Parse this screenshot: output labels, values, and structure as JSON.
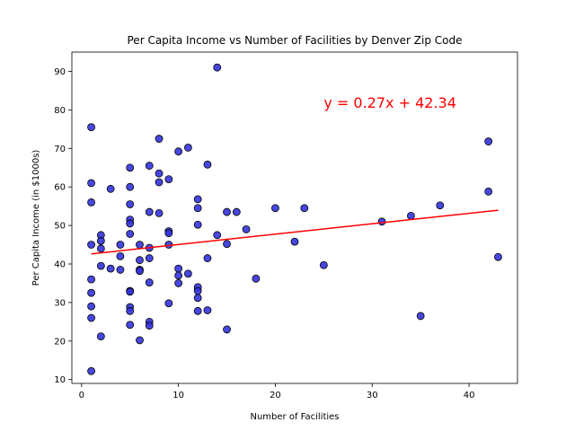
{
  "chart_data": {
    "type": "scatter",
    "title": "Per Capita Income vs Number of Facilities by Denver Zip Code",
    "xlabel": "Number of Facilities",
    "ylabel": "Per Capita Income (in $1000s)",
    "xlim": [
      -1,
      45
    ],
    "ylim": [
      9,
      95
    ],
    "xticks": [
      0,
      10,
      20,
      30,
      40
    ],
    "yticks": [
      10,
      20,
      30,
      40,
      50,
      60,
      70,
      80,
      90
    ],
    "grid": false,
    "equation": "y = 0.27x + 42.34",
    "equation_position": [
      25,
      80.5
    ],
    "regression": {
      "slope": 0.27,
      "intercept": 42.34,
      "x_range": [
        1,
        43
      ]
    },
    "colors": {
      "point_fill": "#3333dd",
      "point_edge": "#000000",
      "line": "#ff0000",
      "equation": "#ff0000"
    },
    "points": [
      [
        1,
        75.5
      ],
      [
        1,
        61
      ],
      [
        1,
        56
      ],
      [
        1,
        45
      ],
      [
        1,
        36
      ],
      [
        1,
        32.5
      ],
      [
        1,
        29
      ],
      [
        1,
        26
      ],
      [
        1,
        12.2
      ],
      [
        2,
        47.5
      ],
      [
        2,
        46
      ],
      [
        2,
        44
      ],
      [
        2,
        39.5
      ],
      [
        2,
        21.2
      ],
      [
        3,
        59.5
      ],
      [
        3,
        38.8
      ],
      [
        4,
        45
      ],
      [
        4,
        42
      ],
      [
        4,
        38.5
      ],
      [
        5,
        65
      ],
      [
        5,
        60
      ],
      [
        5,
        55.5
      ],
      [
        5,
        51.5
      ],
      [
        5,
        50.5
      ],
      [
        5,
        47.8
      ],
      [
        5,
        33
      ],
      [
        5,
        32.8
      ],
      [
        5,
        28.8
      ],
      [
        5,
        27.8
      ],
      [
        5,
        24.2
      ],
      [
        6,
        45
      ],
      [
        6,
        41
      ],
      [
        6,
        38.5
      ],
      [
        6,
        38.2
      ],
      [
        6,
        20.2
      ],
      [
        7,
        65.5
      ],
      [
        7,
        53.5
      ],
      [
        7,
        44.2
      ],
      [
        7,
        41.5
      ],
      [
        7,
        35.2
      ],
      [
        7,
        25
      ],
      [
        7,
        24
      ],
      [
        8,
        72.5
      ],
      [
        8,
        63.5
      ],
      [
        8,
        61.2
      ],
      [
        8,
        53.2
      ],
      [
        9,
        62
      ],
      [
        9,
        48.5
      ],
      [
        9,
        48
      ],
      [
        9,
        45
      ],
      [
        9,
        29.8
      ],
      [
        10,
        69.2
      ],
      [
        10,
        38.8
      ],
      [
        10,
        37
      ],
      [
        10,
        35
      ],
      [
        11,
        70.2
      ],
      [
        11,
        37.5
      ],
      [
        12,
        56.8
      ],
      [
        12,
        54.5
      ],
      [
        12,
        50.2
      ],
      [
        12,
        34
      ],
      [
        12,
        33
      ],
      [
        12,
        31.2
      ],
      [
        12,
        27.8
      ],
      [
        13,
        65.8
      ],
      [
        13,
        41.5
      ],
      [
        13,
        28
      ],
      [
        14,
        91
      ],
      [
        14,
        47.5
      ],
      [
        15,
        53.5
      ],
      [
        15,
        45.2
      ],
      [
        15,
        23
      ],
      [
        16,
        53.5
      ],
      [
        17,
        49
      ],
      [
        18,
        36.2
      ],
      [
        20,
        54.5
      ],
      [
        22,
        45.8
      ],
      [
        23,
        54.5
      ],
      [
        25,
        39.7
      ],
      [
        31,
        51
      ],
      [
        34,
        52.5
      ],
      [
        35,
        26.5
      ],
      [
        37,
        55.2
      ],
      [
        42,
        71.8
      ],
      [
        42,
        58.8
      ],
      [
        43,
        41.8
      ]
    ]
  }
}
